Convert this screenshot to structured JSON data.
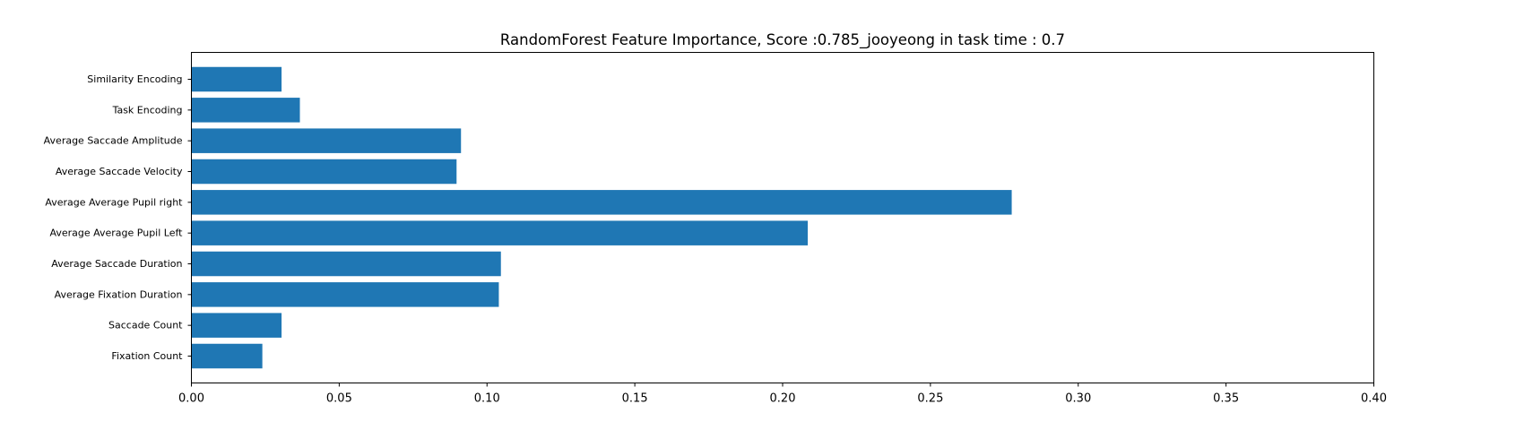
{
  "chart_data": {
    "type": "bar",
    "orientation": "horizontal",
    "title": "RandomForest Feature Importance, Score :0.785_jooyeong in task time : 0.7",
    "xlabel": "",
    "ylabel": "",
    "xlim": [
      0.0,
      0.4
    ],
    "x_ticks": [
      "0.00",
      "0.05",
      "0.10",
      "0.15",
      "0.20",
      "0.25",
      "0.30",
      "0.35",
      "0.40"
    ],
    "categories": [
      "Fixation Count",
      "Saccade Count",
      "Average Fixation Duration",
      "Average Saccade Duration",
      "Average Average Pupil Left",
      "Average Average Pupil right",
      "Average Saccade Velocity",
      "Average Saccade Amplitude",
      "Task Encoding",
      "Similarity Encoding"
    ],
    "values": [
      0.024,
      0.0305,
      0.104,
      0.1047,
      0.2085,
      0.2775,
      0.0897,
      0.0912,
      0.0367,
      0.0305
    ],
    "grid": false,
    "legend": "none",
    "colors": {
      "bar": "#1f77b4",
      "axis": "#000000",
      "background": "#ffffff"
    }
  }
}
